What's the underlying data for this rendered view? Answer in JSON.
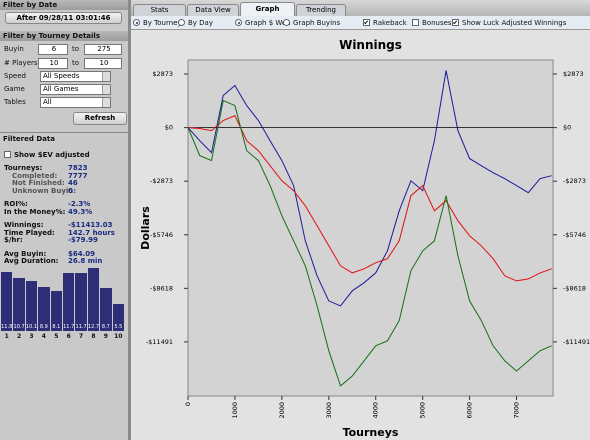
{
  "sidebar": {
    "date_header": "Filter by Date",
    "date_button": "After 09/28/11 03:01:46",
    "details_header": "Filter by Tourney Details",
    "fields": [
      {
        "label": "Buyin",
        "from": "6",
        "to_label": "to",
        "to": "275"
      },
      {
        "label": "# Players",
        "from": "10",
        "to_label": "to",
        "to": "10"
      }
    ],
    "selects": [
      {
        "label": "Speed",
        "value": "All Speeds"
      },
      {
        "label": "Game",
        "value": "All Games"
      },
      {
        "label": "Tables",
        "value": "All"
      }
    ],
    "refresh": "Refresh",
    "filtered_header": "Filtered Data",
    "ev_checkbox": {
      "label": "Show $EV adjusted",
      "checked": false
    },
    "stats": [
      [
        {
          "label": "Tourneys:",
          "value": "7823",
          "indent": false
        },
        {
          "label": "Completed:",
          "value": "7777",
          "indent": true
        },
        {
          "label": "Not Finished:",
          "value": "46",
          "indent": true
        },
        {
          "label": "Unknown Buyin:",
          "value": "0",
          "indent": true
        }
      ],
      [
        {
          "label": "ROI%:",
          "value": "-2.3%",
          "indent": false
        },
        {
          "label": "In the Money%:",
          "value": "49.3%",
          "indent": false
        }
      ],
      [
        {
          "label": "Winnings:",
          "value": "-$11413.03",
          "indent": false
        },
        {
          "label": "Time Played:",
          "value": "142.7 hours",
          "indent": false
        },
        {
          "label": "$/hr:",
          "value": "-$79.99",
          "indent": false
        }
      ],
      [
        {
          "label": "Avg Buyin:",
          "value": "$64.09",
          "indent": false
        },
        {
          "label": "Avg Duration:",
          "value": "26.8 min",
          "indent": false
        }
      ]
    ],
    "distribution": {
      "categories": [
        "1",
        "2",
        "3",
        "4",
        "5",
        "6",
        "7",
        "8",
        "9",
        "10"
      ],
      "values": [
        11.8,
        10.7,
        10.1,
        8.9,
        8.1,
        11.7,
        11.7,
        12.7,
        8.7,
        5.5
      ],
      "color": "#2e2e78"
    }
  },
  "tabs": {
    "items": [
      "Stats",
      "Data View",
      "Graph",
      "Trending"
    ],
    "active": 2
  },
  "options": [
    {
      "label": "By Tourney",
      "kind": "radio",
      "checked": true
    },
    {
      "label": "By Day",
      "kind": "radio",
      "checked": false
    },
    {
      "label": "Graph $ Won",
      "kind": "radio",
      "checked": true
    },
    {
      "label": "Graph Buyins",
      "kind": "radio",
      "checked": false
    },
    {
      "label": "Rakeback",
      "kind": "checkbox",
      "checked": true
    },
    {
      "label": "Bonuses",
      "kind": "checkbox",
      "checked": false
    },
    {
      "label": "Show Luck Adjusted Winnings",
      "kind": "checkbox",
      "checked": true
    }
  ],
  "chart_data": {
    "type": "line",
    "title": "Winnings",
    "x_label": "Tourneys",
    "y_label": "Dollars",
    "x": [
      0,
      250,
      500,
      750,
      1000,
      1250,
      1500,
      1750,
      2000,
      2250,
      2500,
      2750,
      3000,
      3250,
      3500,
      3750,
      4000,
      4250,
      4500,
      4750,
      5000,
      5250,
      5500,
      5750,
      6000,
      6250,
      6500,
      6750,
      7000,
      7250,
      7500,
      7750
    ],
    "series": [
      {
        "color": "#1a1a9a",
        "values": [
          0,
          -700,
          -1340,
          1720,
          2260,
          1180,
          380,
          -700,
          -1770,
          -3110,
          -6070,
          -7950,
          -9290,
          -9560,
          -8750,
          -8320,
          -7790,
          -6600,
          -4460,
          -2850,
          -3380,
          -700,
          3060,
          -160,
          -1660,
          -2040,
          -2420,
          -2740,
          -3110,
          -3490,
          -2740,
          -2580
        ]
      },
      {
        "color": "#e01010",
        "values": [
          0,
          -50,
          -160,
          380,
          640,
          -700,
          -1240,
          -2040,
          -2850,
          -3380,
          -4190,
          -5260,
          -6340,
          -7410,
          -7790,
          -7570,
          -7250,
          -7030,
          -6070,
          -3650,
          -3110,
          -4460,
          -3920,
          -4990,
          -5800,
          -6340,
          -7030,
          -7950,
          -8220,
          -8110,
          -7790,
          -7570
        ]
      },
      {
        "color": "#127012",
        "values": [
          0,
          -1500,
          -1770,
          1450,
          1180,
          -1240,
          -1770,
          -3110,
          -4730,
          -6070,
          -7410,
          -9560,
          -11970,
          -13850,
          -13320,
          -12510,
          -11700,
          -11430,
          -10350,
          -7680,
          -6610,
          -6070,
          -3650,
          -6870,
          -9290,
          -10350,
          -11700,
          -12510,
          -13050,
          -12510,
          -11970,
          -11700
        ]
      }
    ],
    "xlim": [
      0,
      7777
    ],
    "xticks": [
      0,
      1000,
      2000,
      3000,
      4000,
      5000,
      6000,
      7000
    ],
    "ylim": [
      -14391,
      3625
    ],
    "yticks": [
      {
        "value": 2873,
        "label": "$2873"
      },
      {
        "value": 0,
        "label": "$0"
      },
      {
        "value": -2873,
        "label": "-$2873"
      },
      {
        "value": -5746,
        "label": "-$5746"
      },
      {
        "value": -8618,
        "label": "-$8618"
      },
      {
        "value": -11491,
        "label": "-$11491"
      }
    ],
    "zero_line": true,
    "right_axis_labels": true
  }
}
